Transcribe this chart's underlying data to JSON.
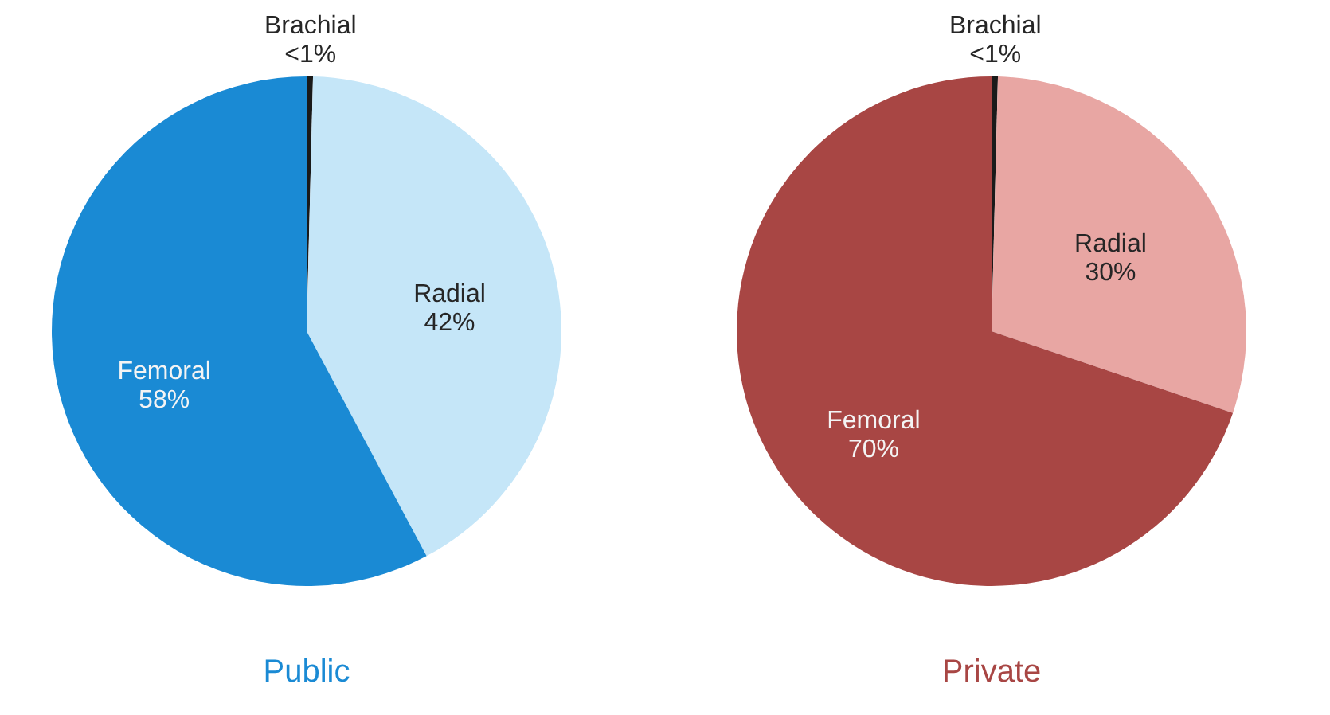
{
  "chart_data": [
    {
      "type": "pie",
      "title": "Public",
      "categories": [
        "Brachial",
        "Radial",
        "Femoral"
      ],
      "values": [
        0.4,
        41.8,
        57.8
      ],
      "colors": [
        "#1a1a1a",
        "#c5e6f8",
        "#1a8ad4"
      ],
      "value_labels": [
        "<1%",
        "42%",
        "58%"
      ]
    },
    {
      "type": "pie",
      "title": "Private",
      "categories": [
        "Brachial",
        "Radial",
        "Femoral"
      ],
      "values": [
        0.4,
        29.8,
        69.8
      ],
      "colors": [
        "#1a1a1a",
        "#e8a6a3",
        "#a84644"
      ],
      "value_labels": [
        "<1%",
        "30%",
        "70%"
      ]
    }
  ]
}
